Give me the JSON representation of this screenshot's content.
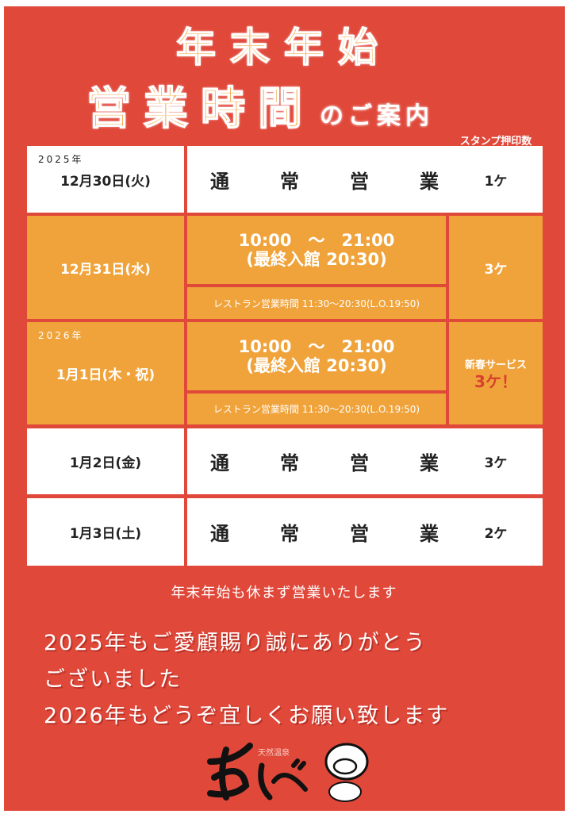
{
  "title": {
    "line1": "年末年始",
    "line2": "営業時間",
    "line2_suffix": "のご案内"
  },
  "stamp_header": "スタンプ押印数",
  "rows": [
    {
      "year": "2025年",
      "date": "12月30日(火)",
      "hours": "通　常　営　業",
      "stamp": "1ケ"
    },
    {
      "date": "12月31日(水)",
      "hours_line1": "10:00　～　21:00",
      "hours_line2": "(最終入館 20:30)",
      "restaurant": "レストラン営業時間 11:30～20:30(L.O.19:50)",
      "stamp": "3ケ"
    },
    {
      "year": "2026年",
      "date": "1月1日(木・祝)",
      "hours_line1": "10:00　～　21:00",
      "hours_line2": "(最終入館 20:30)",
      "restaurant": "レストラン営業時間 11:30～20:30(L.O.19:50)",
      "stamp_label": "新春サービス",
      "stamp": "3ケ！"
    },
    {
      "date": "1月2日(金)",
      "hours": "通　常　営　業",
      "stamp": "3ケ"
    },
    {
      "date": "1月3日(土)",
      "hours": "通　常　営　業",
      "stamp": "2ケ"
    }
  ],
  "note": "年末年始も休まず営業いたします",
  "message": [
    "2025年もご愛顧賜り誠にありがとう",
    "ございました",
    "2026年もどうぞ宜しくお願い致します"
  ],
  "logo": {
    "text": "あしべ",
    "subtext": "天然温泉"
  },
  "colors": {
    "background": "#e0483a",
    "highlight": "#f0a33a",
    "accent_text": "#d8402f"
  }
}
